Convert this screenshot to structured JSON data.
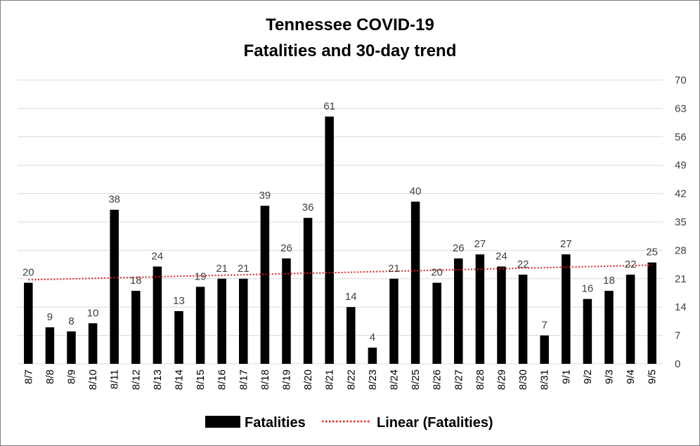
{
  "chart_data": {
    "type": "bar",
    "title": "Tennessee COVID-19",
    "subtitle": "Fatalities and 30-day trend",
    "categories": [
      "8/7",
      "8/8",
      "8/9",
      "8/10",
      "8/11",
      "8/12",
      "8/13",
      "8/14",
      "8/15",
      "8/16",
      "8/17",
      "8/18",
      "8/19",
      "8/20",
      "8/21",
      "8/22",
      "8/23",
      "8/24",
      "8/25",
      "8/26",
      "8/27",
      "8/28",
      "8/29",
      "8/30",
      "8/31",
      "9/1",
      "9/2",
      "9/3",
      "9/4",
      "9/5"
    ],
    "series": [
      {
        "name": "Fatalities",
        "type": "bar",
        "color": "#000000",
        "values": [
          20,
          9,
          8,
          10,
          38,
          18,
          24,
          13,
          19,
          21,
          21,
          39,
          26,
          36,
          61,
          14,
          4,
          21,
          40,
          20,
          26,
          27,
          24,
          22,
          7,
          27,
          16,
          18,
          22,
          25
        ]
      },
      {
        "name": "Linear (Fatalities)",
        "type": "trendline",
        "color": "#e02020",
        "style": "dotted"
      }
    ],
    "ylim": [
      0,
      70
    ],
    "yticks": [
      0,
      7,
      14,
      21,
      28,
      35,
      42,
      49,
      56,
      63,
      70
    ],
    "y_axis_position": "right",
    "grid": true,
    "legend": "bottom",
    "data_labels": true
  }
}
